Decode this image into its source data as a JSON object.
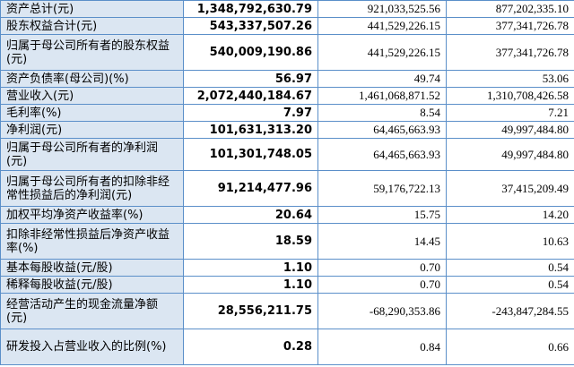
{
  "rows": [
    {
      "label": "资产总计(元)",
      "v1": "1,348,792,630.79",
      "v2": "921,033,525.56",
      "v3": "877,202,335.10"
    },
    {
      "label": "股东权益合计(元)",
      "v1": "543,337,507.26",
      "v2": "441,529,226.15",
      "v3": "377,341,726.78"
    },
    {
      "label": "归属于母公司所有者的股东权益(元)",
      "v1": "540,009,190.86",
      "v2": "441,529,226.15",
      "v3": "377,341,726.78"
    },
    {
      "label": "资产负债率(母公司)(%)",
      "v1": "56.97",
      "v2": "49.74",
      "v3": "53.06"
    },
    {
      "label": "营业收入(元)",
      "v1": "2,072,440,184.67",
      "v2": "1,461,068,871.52",
      "v3": "1,310,708,426.58"
    },
    {
      "label": "毛利率(%)",
      "v1": "7.97",
      "v2": "8.54",
      "v3": "7.21"
    },
    {
      "label": "净利润(元)",
      "v1": "101,631,313.20",
      "v2": "64,465,663.93",
      "v3": "49,997,484.80"
    },
    {
      "label": "归属于母公司所有者的净利润(元)",
      "v1": "101,301,748.05",
      "v2": "64,465,663.93",
      "v3": "49,997,484.80"
    },
    {
      "label": "归属于母公司所有者的扣除非经常性损益后的净利润(元)",
      "v1": "91,214,477.96",
      "v2": "59,176,722.13",
      "v3": "37,415,209.49"
    },
    {
      "label": "加权平均净资产收益率(%)",
      "v1": "20.64",
      "v2": "15.75",
      "v3": "14.20"
    },
    {
      "label": "扣除非经常性损益后净资产收益率(%)",
      "v1": "18.59",
      "v2": "14.45",
      "v3": "10.63"
    },
    {
      "label": "基本每股收益(元/股)",
      "v1": "1.10",
      "v2": "0.70",
      "v3": "0.54"
    },
    {
      "label": "稀释每股收益(元/股)",
      "v1": "1.10",
      "v2": "0.70",
      "v3": "0.54"
    },
    {
      "label": "经营活动产生的现金流量净额(元)",
      "v1": "28,556,211.75",
      "v2": "-68,290,353.86",
      "v3": "-243,847,284.55"
    },
    {
      "label": "研发投入占营业收入的比例(%)",
      "v1": "0.28",
      "v2": "0.84",
      "v3": "0.66"
    }
  ]
}
